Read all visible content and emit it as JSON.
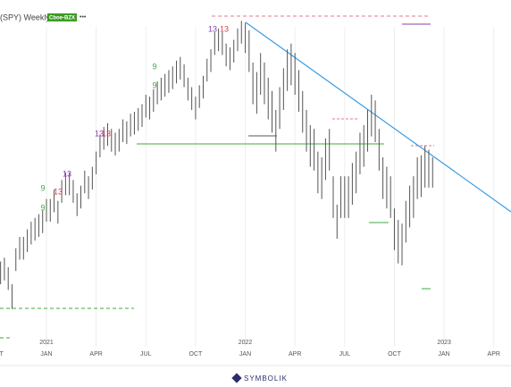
{
  "chart_data": {
    "type": "hilo",
    "title": "(SPY) Weekly",
    "badge": "Cboe-BZX",
    "menu": "•••",
    "footer": "SYMBOLIK",
    "color": "#555555",
    "high": [
      351,
      353,
      348,
      339,
      358,
      364,
      364,
      368,
      372,
      374,
      376,
      378,
      384,
      384,
      389,
      383,
      394,
      398,
      398,
      394,
      387,
      391,
      399,
      396,
      401,
      409,
      418,
      422,
      424,
      421,
      419,
      421,
      426,
      425,
      429,
      430,
      432,
      434,
      439,
      438,
      442,
      446,
      448,
      450,
      452,
      454,
      457,
      459,
      455,
      448,
      443,
      438,
      444,
      449,
      458,
      463,
      472,
      474,
      472,
      466,
      464,
      468,
      474,
      478,
      477,
      473,
      456,
      451,
      461,
      456,
      448,
      441,
      431,
      443,
      453,
      463,
      466,
      461,
      452,
      441,
      431,
      423,
      421,
      409,
      406,
      416,
      421,
      396,
      381,
      396,
      396,
      396,
      403,
      409,
      419,
      423,
      431,
      439,
      436,
      421,
      406,
      401,
      396,
      379,
      373,
      371,
      383,
      391,
      396,
      406,
      407,
      412,
      410,
      406
    ],
    "low": [
      339,
      341,
      336,
      326,
      346,
      352,
      352,
      356,
      360,
      362,
      364,
      366,
      372,
      372,
      377,
      371,
      382,
      386,
      386,
      382,
      375,
      379,
      387,
      384,
      389,
      397,
      406,
      410,
      412,
      409,
      407,
      409,
      414,
      413,
      417,
      418,
      420,
      422,
      427,
      426,
      430,
      434,
      436,
      438,
      440,
      442,
      445,
      447,
      443,
      436,
      431,
      426,
      432,
      437,
      446,
      451,
      460,
      462,
      460,
      454,
      452,
      456,
      462,
      466,
      461,
      451,
      434,
      429,
      439,
      434,
      426,
      419,
      409,
      421,
      431,
      441,
      444,
      439,
      430,
      419,
      409,
      401,
      399,
      387,
      384,
      394,
      399,
      374,
      363,
      374,
      374,
      374,
      381,
      387,
      397,
      401,
      409,
      417,
      414,
      399,
      384,
      379,
      374,
      357,
      350,
      349,
      361,
      369,
      374,
      384,
      385,
      390,
      390,
      390
    ],
    "xlim": [
      -0.15,
      133.5
    ],
    "ylim": [
      306,
      489
    ],
    "xticks": [
      {
        "value": -1,
        "label": "OCT"
      },
      {
        "value": 12,
        "label": "JAN"
      },
      {
        "value": 25,
        "label": "APR"
      },
      {
        "value": 38,
        "label": "JUL"
      },
      {
        "value": 51,
        "label": "OCT"
      },
      {
        "value": 64,
        "label": "JAN"
      },
      {
        "value": 77,
        "label": "APR"
      },
      {
        "value": 90,
        "label": "JUL"
      },
      {
        "value": 103,
        "label": "OCT"
      },
      {
        "value": 116,
        "label": "JAN"
      },
      {
        "value": 129,
        "label": "APR"
      }
    ],
    "year_ticks": [
      {
        "value": 12,
        "label": "2021"
      },
      {
        "value": 64,
        "label": "2022"
      },
      {
        "value": 116,
        "label": "2023"
      }
    ],
    "annotations": [
      "13",
      "13",
      "9",
      "9",
      "13",
      "13",
      "9",
      "9",
      "13",
      "13"
    ],
    "grid": true
  }
}
